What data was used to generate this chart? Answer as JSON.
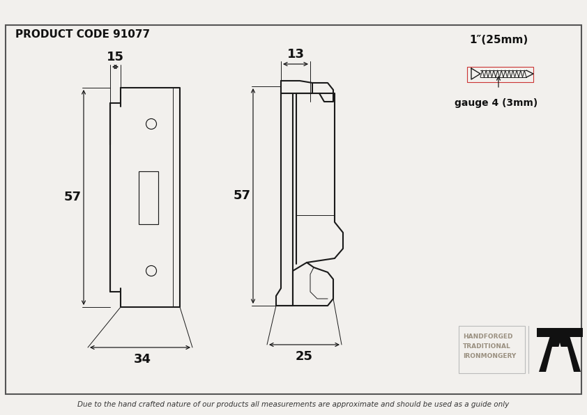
{
  "title": "PRODUCT CODE 91077",
  "bg_color": "#f2f0ed",
  "border_color": "#555555",
  "line_color": "#1a1a1a",
  "dim_color": "#111111",
  "footer_text": "Due to the hand crafted nature of our products all measurements are approximate and should be used as a guide only",
  "screw_label_top": "1″(25mm)",
  "screw_label_bottom": "gauge 4 (3mm)",
  "brand_line1": "HANDFORGED",
  "brand_line2": "TRADITIONAL",
  "brand_line3": "IRONMONGERY",
  "dim_15": "15",
  "dim_57_left": "57",
  "dim_34": "34",
  "dim_13": "13",
  "dim_57_right": "57",
  "dim_25": "25"
}
